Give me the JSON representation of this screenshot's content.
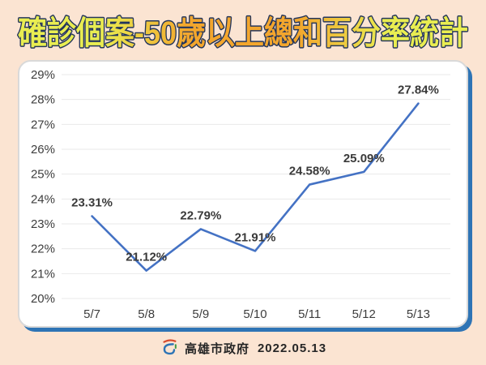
{
  "title": "確診個案-50歲以上總和百分率統計",
  "title_colors": {
    "side": "#e9ed51",
    "mid": "#f3a62d",
    "outline": "#23355c"
  },
  "page": {
    "background_color": "#fbe4d2",
    "card_accent_color": "#2e74b5"
  },
  "chart_data": {
    "type": "line",
    "categories": [
      "5/7",
      "5/8",
      "5/9",
      "5/10",
      "5/11",
      "5/12",
      "5/13"
    ],
    "values": [
      23.31,
      21.12,
      22.79,
      21.91,
      24.58,
      25.09,
      27.84
    ],
    "labels": [
      "23.31%",
      "21.12%",
      "22.79%",
      "21.91%",
      "24.58%",
      "25.09%",
      "27.84%"
    ],
    "title": "確診個案-50歲以上總和百分率統計",
    "xlabel": "",
    "ylabel": "",
    "ylim": [
      20,
      29
    ],
    "y_tick_step": 1,
    "y_tick_suffix": "%",
    "grid": true,
    "legend": "none",
    "line_color": "#4472c4",
    "grid_color": "#e9e9e9",
    "tick_color": "#3d3d3d",
    "label_color": "#3a3a3a"
  },
  "footer": {
    "org": "高雄市政府",
    "date": "2022.05.13",
    "logo": "kaohsiung-logo-icon"
  }
}
